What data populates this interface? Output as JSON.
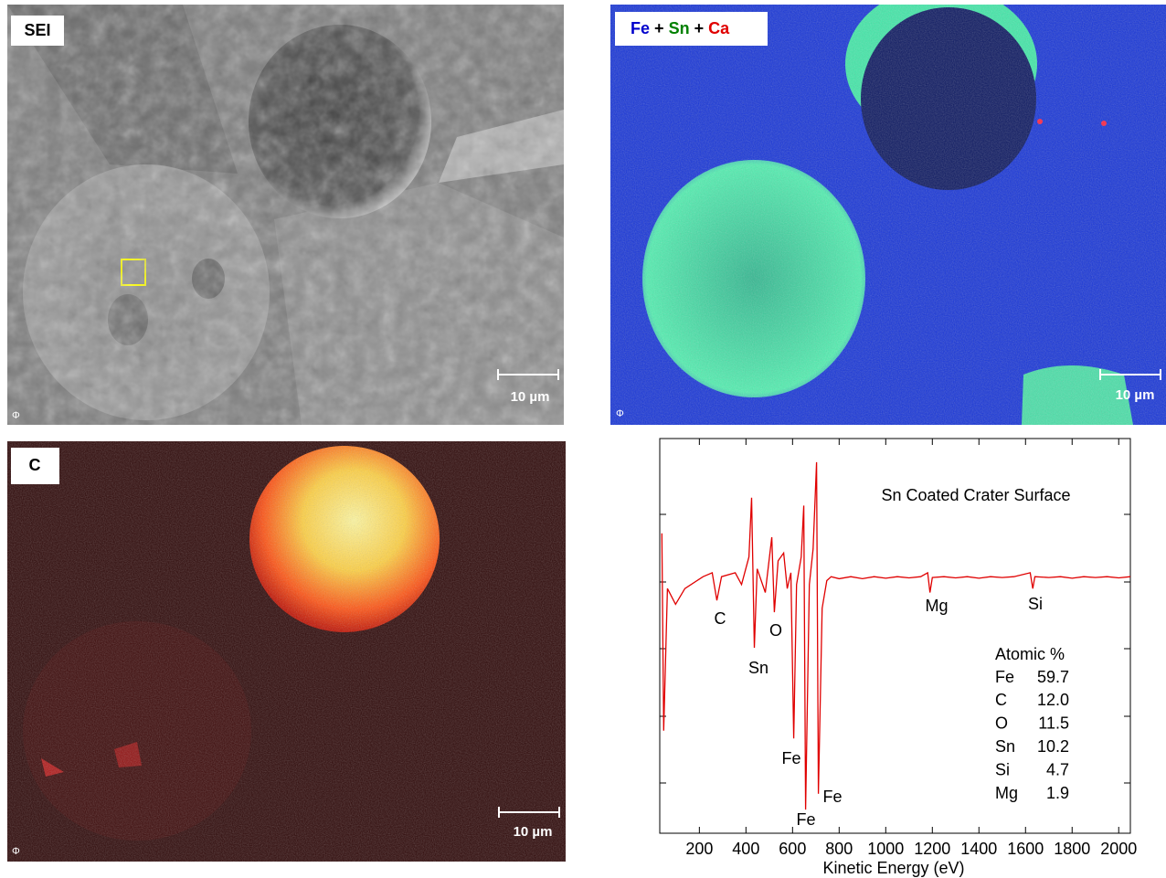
{
  "panels": [
    {
      "label": "SEI",
      "scale_bar": "10 µm",
      "logo": "Φ"
    },
    {
      "label_parts": [
        "Fe",
        "+",
        "Sn",
        "+",
        "Ca"
      ],
      "label_colors": [
        "#0000cc",
        "#000000",
        "#008000",
        "#000000",
        "#e00000"
      ],
      "scale_bar": "10 µm",
      "logo": "Φ"
    },
    {
      "label": "C",
      "scale_bar": "10 µm",
      "logo": "Φ"
    }
  ],
  "chart_data": {
    "type": "line",
    "title": "Sn Coated Crater Surface",
    "x_label": "Kinetic Energy (eV)",
    "color": "#e00000",
    "x": [
      39,
      47,
      63,
      98,
      138,
      216,
      255,
      275,
      295,
      354,
      381,
      413,
      424,
      436,
      448,
      483,
      511,
      522,
      538,
      562,
      577,
      593,
      605,
      617,
      637,
      648,
      656,
      672,
      688,
      703,
      711,
      727,
      747,
      766,
      800,
      850,
      900,
      950,
      1000,
      1050,
      1100,
      1150,
      1180,
      1190,
      1200,
      1250,
      1300,
      1350,
      1400,
      1450,
      1500,
      1550,
      1620,
      1631,
      1640,
      1700,
      1750,
      1800,
      1850,
      1900,
      1950,
      2000,
      2050
    ],
    "values": [
      76,
      26,
      62,
      58,
      62,
      65,
      66,
      59,
      65,
      66,
      63,
      70,
      85,
      47,
      67,
      61,
      75,
      56,
      69,
      71,
      62,
      66,
      24,
      63,
      70,
      83,
      6,
      63,
      72,
      94,
      10,
      57,
      64,
      65,
      64.5,
      65,
      64.5,
      65,
      64.6,
      65,
      64.7,
      65,
      66,
      61,
      64.8,
      65,
      64.7,
      65,
      64.6,
      65,
      64.8,
      65,
      66,
      62,
      65,
      64.8,
      65,
      64.6,
      65,
      64.8,
      65,
      64.7,
      65
    ],
    "xlim": [
      30,
      2050
    ],
    "ylim": [
      0,
      100
    ],
    "xticks": [
      200,
      400,
      600,
      800,
      1000,
      1200,
      1400,
      1600,
      1800,
      2000
    ],
    "annotations": [
      "C",
      "O",
      "Sn",
      "Fe",
      "Fe",
      "Fe",
      "Mg",
      "Si"
    ],
    "composition": {
      "title": "Atomic %",
      "rows": [
        [
          "Fe",
          "59.7"
        ],
        [
          "C",
          "12.0"
        ],
        [
          "O",
          "11.5"
        ],
        [
          "Sn",
          "10.2"
        ],
        [
          "Si",
          "4.7"
        ],
        [
          "Mg",
          "1.9"
        ]
      ]
    }
  }
}
